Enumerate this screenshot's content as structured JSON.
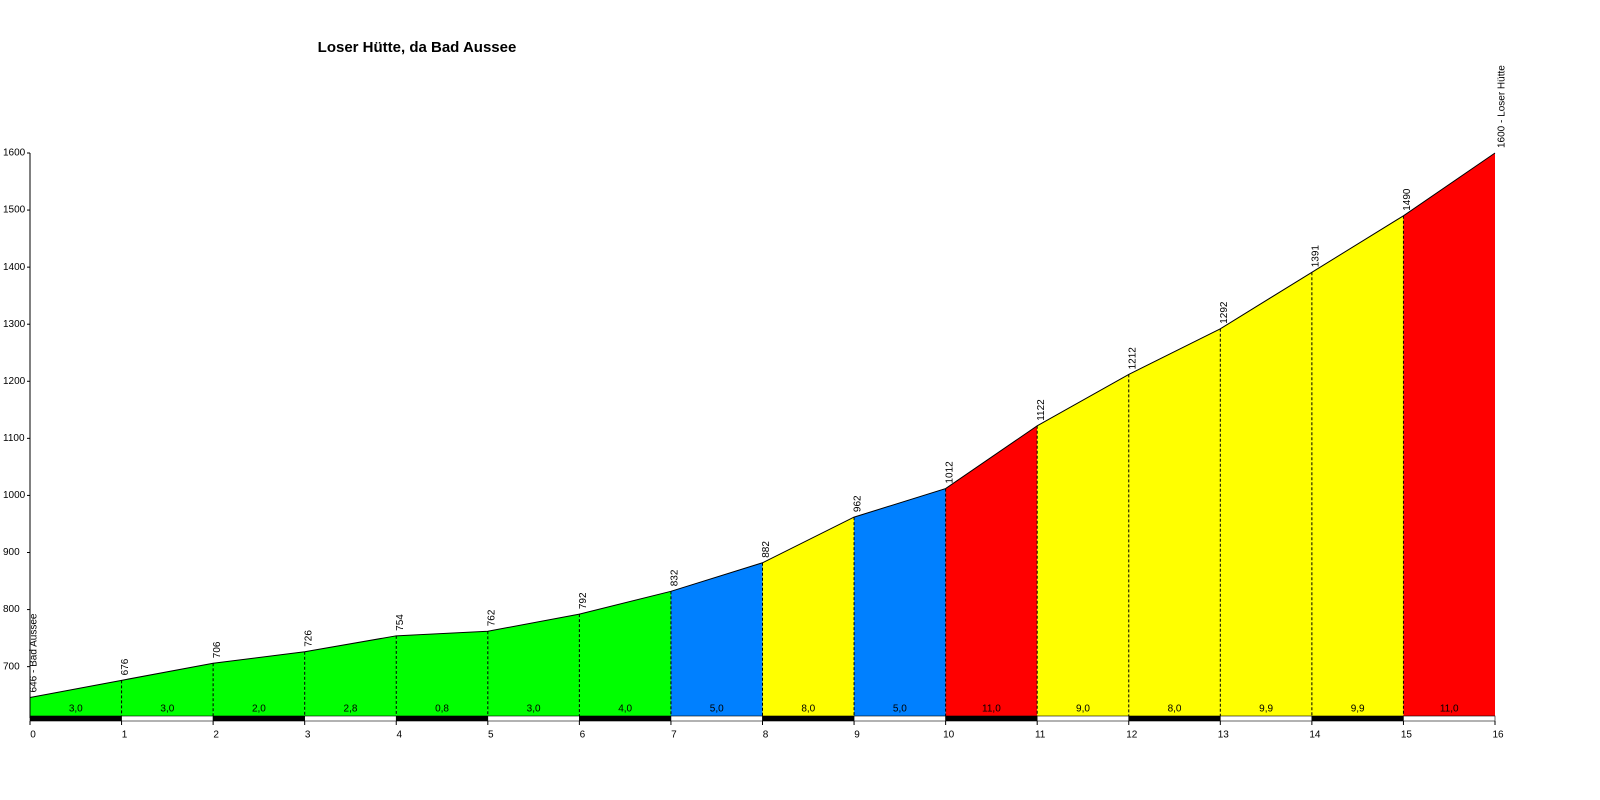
{
  "chart_data": {
    "type": "elevation-profile",
    "title": "Loser Hütte, da Bad Aussee",
    "x": [
      0,
      1,
      2,
      3,
      4,
      5,
      6,
      7,
      8,
      9,
      10,
      11,
      12,
      13,
      14,
      15,
      16
    ],
    "xlim": [
      0,
      16
    ],
    "xticks": [
      0,
      1,
      2,
      3,
      4,
      5,
      6,
      7,
      8,
      9,
      10,
      11,
      12,
      13,
      14,
      15,
      16
    ],
    "ylim": [
      610,
      1600
    ],
    "yticks": [
      700,
      800,
      900,
      1000,
      1100,
      1200,
      1300,
      1400,
      1500,
      1600
    ],
    "series": [
      {
        "color": "#000000",
        "values": [
          646,
          676,
          706,
          726,
          754,
          762,
          792,
          832,
          882,
          962,
          1012,
          1122,
          1212,
          1292,
          1391,
          1490,
          1600
        ],
        "value_labels": [
          "646 - Bad Aussee",
          "676",
          "706",
          "726",
          "754",
          "762",
          "792",
          "832",
          "882",
          "962",
          "1012",
          "1122",
          "1212",
          "1292",
          "1391",
          "1490",
          "1600 - Loser Hütte"
        ]
      }
    ],
    "gradients": {
      "values": [
        3.0,
        3.0,
        2.0,
        2.8,
        0.8,
        3.0,
        4.0,
        5.0,
        8.0,
        5.0,
        11.0,
        9.0,
        8.0,
        9.9,
        9.9,
        11.0
      ],
      "value_labels": [
        "3,0",
        "3,0",
        "2,0",
        "2,8",
        "0,8",
        "3,0",
        "4,0",
        "5,0",
        "8,0",
        "5,0",
        "11,0",
        "9,0",
        "8,0",
        "9,9",
        "9,9",
        "11,0"
      ],
      "colors": [
        "#00ff00",
        "#00ff00",
        "#00ff00",
        "#00ff00",
        "#00ff00",
        "#00ff00",
        "#00ff00",
        "#0080ff",
        "#ffff00",
        "#0080ff",
        "#ff0000",
        "#ffff00",
        "#ffff00",
        "#ffff00",
        "#ffff00",
        "#ff0000"
      ]
    }
  }
}
